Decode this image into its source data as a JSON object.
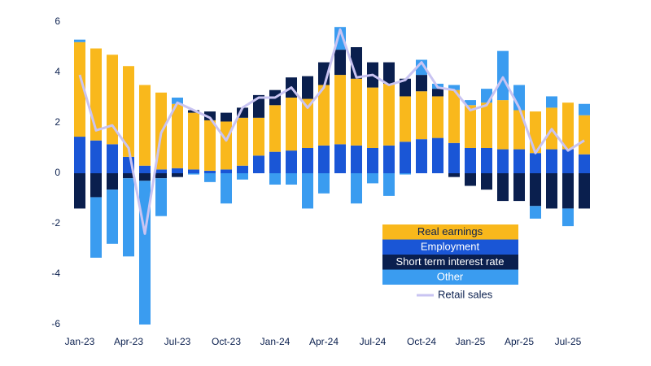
{
  "chart_data": {
    "type": "bar",
    "stacked": true,
    "categories": [
      "Jan-23",
      null,
      null,
      "Apr-23",
      null,
      null,
      "Jul-23",
      null,
      null,
      "Oct-23",
      null,
      null,
      "Jan-24",
      null,
      null,
      "Apr-24",
      null,
      null,
      "Jul-24",
      null,
      null,
      "Oct-24",
      null,
      null,
      "Jan-25",
      null,
      null,
      "Apr-25",
      null,
      null,
      "Jul-25",
      null
    ],
    "series": [
      {
        "name": "Real earnings",
        "color": "#f9b81c",
        "values": [
          3.75,
          3.65,
          3.55,
          3.6,
          3.2,
          3.05,
          2.55,
          2.25,
          2.0,
          1.9,
          1.9,
          1.5,
          1.85,
          2.1,
          1.95,
          2.4,
          2.75,
          2.65,
          2.4,
          2.45,
          1.8,
          1.9,
          1.65,
          2.1,
          1.7,
          1.8,
          1.95,
          1.55,
          1.65,
          1.65,
          1.85,
          1.55
        ]
      },
      {
        "name": "Employment",
        "color": "#1a56d6",
        "values": [
          1.45,
          1.3,
          1.15,
          0.65,
          0.3,
          0.15,
          0.2,
          0.15,
          0.1,
          0.15,
          0.3,
          0.7,
          0.85,
          0.9,
          1.0,
          1.1,
          1.15,
          1.1,
          1.0,
          1.1,
          1.25,
          1.35,
          1.4,
          1.2,
          1.0,
          1.0,
          0.95,
          0.95,
          0.8,
          0.95,
          0.95,
          0.75
        ]
      },
      {
        "name": "Short term interest rate",
        "color": "#0a1f4e",
        "values": [
          -1.4,
          -0.95,
          -0.65,
          -0.2,
          -0.3,
          -0.2,
          -0.15,
          0.1,
          0.35,
          0.35,
          0.4,
          0.9,
          0.6,
          0.8,
          0.9,
          0.9,
          1.0,
          1.25,
          1.0,
          0.85,
          0.7,
          0.65,
          0.3,
          -0.15,
          -0.5,
          -0.65,
          -1.1,
          -1.1,
          -1.3,
          -1.4,
          -1.4,
          -1.4
        ]
      },
      {
        "name": "Other",
        "color": "#3a9cf0",
        "values": [
          0.1,
          -2.4,
          -2.15,
          -3.1,
          -5.7,
          -1.5,
          0.25,
          -0.05,
          -0.35,
          -1.2,
          -0.25,
          0,
          -0.45,
          -0.45,
          -1.4,
          -0.8,
          0.9,
          -1.2,
          -0.4,
          -0.9,
          -0.05,
          0.6,
          0.2,
          0.2,
          0.2,
          0.55,
          1.95,
          1.0,
          -0.5,
          0.45,
          -0.7,
          0.45
        ]
      },
      {
        "name": "Retail sales",
        "type": "line",
        "color": "#c9c4f2",
        "values": [
          3.9,
          1.7,
          1.9,
          1.0,
          -2.4,
          1.6,
          2.8,
          2.5,
          2.2,
          1.3,
          2.6,
          3.0,
          3.0,
          3.4,
          2.6,
          3.4,
          5.7,
          3.8,
          3.9,
          3.5,
          3.7,
          4.4,
          3.4,
          3.3,
          2.5,
          2.7,
          3.8,
          2.6,
          0.8,
          1.75,
          0.9,
          1.3
        ]
      }
    ],
    "ylim": [
      -6,
      6
    ],
    "yticks": [
      -6,
      -4,
      -2,
      0,
      2,
      4,
      6
    ],
    "grid": false
  }
}
